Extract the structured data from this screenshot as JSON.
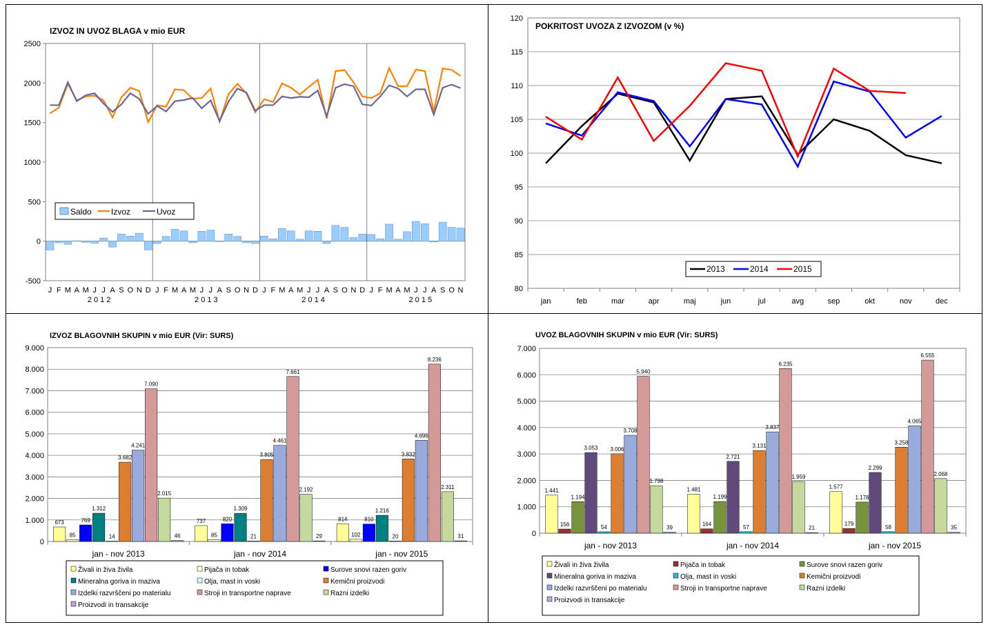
{
  "chart_data": [
    {
      "type": "bar+line",
      "title": "IZVOZ IN UVOZ BLAGA v mio EUR",
      "ylim": [
        -500,
        2500
      ],
      "yticks": [
        2500,
        2000,
        1500,
        1000,
        500,
        0,
        -500
      ],
      "month_labels": [
        "J",
        "F",
        "M",
        "A",
        "M",
        "J",
        "J",
        "A",
        "S",
        "O",
        "N",
        "D",
        "J",
        "F",
        "M",
        "A",
        "M",
        "J",
        "J",
        "A",
        "S",
        "O",
        "N",
        "D",
        "J",
        "F",
        "M",
        "A",
        "M",
        "J",
        "J",
        "A",
        "S",
        "O",
        "N",
        "D",
        "J",
        "F",
        "M",
        "A",
        "M",
        "J",
        "J",
        "A",
        "S",
        "O",
        "N"
      ],
      "years": [
        "2 0 1 2",
        "2 0 1 3",
        "2 0 1 4",
        "2 0 1 5"
      ],
      "legend": [
        "Saldo",
        "Izvoz",
        "Uvoz"
      ],
      "legend_position": "lower-left",
      "grid": "vertical year separators",
      "series": [
        {
          "name": "Saldo",
          "type": "bar",
          "color": "#99ccff",
          "values": [
            -110,
            -20,
            -40,
            5,
            -15,
            -25,
            40,
            -75,
            90,
            65,
            100,
            -110,
            -30,
            60,
            150,
            130,
            -20,
            125,
            140,
            -5,
            90,
            60,
            -20,
            -30,
            65,
            30,
            160,
            130,
            25,
            130,
            125,
            -30,
            200,
            175,
            45,
            90,
            85,
            30,
            215,
            25,
            120,
            250,
            220,
            -10,
            240,
            175,
            165
          ]
        },
        {
          "name": "Izvoz",
          "type": "line",
          "color": "#ff7f00",
          "values": [
            1615,
            1690,
            1990,
            1780,
            1830,
            1840,
            1780,
            1565,
            1820,
            1940,
            1900,
            1505,
            1720,
            1700,
            1920,
            1910,
            1800,
            1810,
            1930,
            1510,
            1860,
            1990,
            1870,
            1630,
            1795,
            1760,
            1995,
            1940,
            1855,
            1950,
            2040,
            1550,
            2150,
            2165,
            2010,
            1830,
            1810,
            1870,
            2190,
            1960,
            1960,
            2170,
            2150,
            1640,
            2185,
            2165,
            2090
          ]
        },
        {
          "name": "Uvoz",
          "type": "line",
          "color": "#666699",
          "values": [
            1720,
            1720,
            2010,
            1770,
            1845,
            1870,
            1740,
            1635,
            1730,
            1870,
            1800,
            1610,
            1710,
            1640,
            1770,
            1785,
            1810,
            1680,
            1780,
            1520,
            1765,
            1930,
            1880,
            1650,
            1720,
            1720,
            1830,
            1810,
            1825,
            1820,
            1905,
            1580,
            1940,
            1985,
            1960,
            1730,
            1715,
            1830,
            1970,
            1930,
            1830,
            1920,
            1920,
            1600,
            1940,
            1980,
            1935
          ]
        }
      ]
    },
    {
      "type": "line",
      "title": "POKRITOST UVOZA Z IZVOZOM (v %)",
      "categories": [
        "jan",
        "feb",
        "mar",
        "apr",
        "maj",
        "jun",
        "jul",
        "avg",
        "sep",
        "okt",
        "nov",
        "dec"
      ],
      "ylim": [
        80,
        120
      ],
      "yticks": [
        120,
        115,
        110,
        105,
        100,
        95,
        90,
        85,
        80
      ],
      "legend_position": "bottom-center",
      "series": [
        {
          "name": "2013",
          "color": "#000000",
          "values": [
            98.5,
            104.0,
            108.8,
            107.5,
            98.9,
            108.0,
            108.4,
            99.8,
            105.0,
            103.3,
            99.7,
            98.5
          ]
        },
        {
          "name": "2014",
          "color": "#0000ff",
          "values": [
            104.4,
            102.6,
            109.0,
            107.7,
            101.0,
            108.0,
            107.2,
            98.0,
            110.6,
            109.1,
            102.3,
            105.5
          ]
        },
        {
          "name": "2015",
          "color": "#ff0000",
          "values": [
            105.4,
            102.0,
            111.2,
            101.8,
            107.0,
            113.3,
            112.2,
            99.5,
            112.5,
            109.2,
            108.9,
            null
          ]
        }
      ]
    },
    {
      "type": "bar",
      "title": "IZVOZ BLAGOVNIH SKUPIN v mio EUR (Vir: SURS)",
      "categories": [
        "jan - nov 2013",
        "jan - nov 2014",
        "jan - nov 2015"
      ],
      "ylim": [
        0,
        9000
      ],
      "yticks": [
        "9.000",
        "8.000",
        "7.000",
        "6.000",
        "5.000",
        "4.000",
        "3.000",
        "2.000",
        "1.000",
        "0"
      ],
      "series": [
        {
          "name": "Živali in živa živila",
          "color": "#ffff99",
          "values": [
            673,
            737,
            814
          ],
          "labels": [
            "673",
            "737",
            "814"
          ]
        },
        {
          "name": "Pijača in tobak",
          "color": "#ffffcc",
          "values": [
            85,
            85,
            102
          ],
          "labels": [
            "85",
            "85",
            "102"
          ]
        },
        {
          "name": "Surove snovi razen goriv",
          "color": "#0000ff",
          "values": [
            769,
            820,
            810
          ],
          "labels": [
            "769",
            "820",
            "810"
          ]
        },
        {
          "name": "Mineralna goriva in maziva",
          "color": "#008080",
          "values": [
            1312,
            1309,
            1216
          ],
          "labels": [
            "1.312",
            "1.309",
            "1.216"
          ]
        },
        {
          "name": "Olja, mast in voski",
          "color": "#ccffff",
          "values": [
            14,
            21,
            20
          ],
          "labels": [
            "14",
            "21",
            "20"
          ]
        },
        {
          "name": "Kemični proizvodi",
          "color": "#dd7f33",
          "values": [
            3682,
            3805,
            3832
          ],
          "labels": [
            "3.682",
            "3.805",
            "3.832"
          ]
        },
        {
          "name": "Izdelki razvrščeni po materialu",
          "color": "#99aadd",
          "values": [
            4241,
            4461,
            4696
          ],
          "labels": [
            "4.241",
            "4.461",
            "4.696"
          ]
        },
        {
          "name": "Stroji in transportne naprave",
          "color": "#d49a9a",
          "values": [
            7090,
            7661,
            8236
          ],
          "labels": [
            "7.090",
            "7.661",
            "8.236"
          ]
        },
        {
          "name": "Razni izdelki",
          "color": "#c4d99b",
          "values": [
            2015,
            2192,
            2311
          ],
          "labels": [
            "2.015",
            "2.192",
            "2.311"
          ]
        },
        {
          "name": "Proizvodi in transakcije",
          "color": "#b9a6d6",
          "values": [
            46,
            29,
            31
          ],
          "labels": [
            "46",
            "29",
            "31"
          ]
        }
      ]
    },
    {
      "type": "bar",
      "title": "UVOZ BLAGOVNIH SKUPIN v mio EUR (Vir: SURS)",
      "categories": [
        "jan - nov 2013",
        "jan - nov 2014",
        "jan - nov 2015"
      ],
      "ylim": [
        0,
        7000
      ],
      "yticks": [
        "7.000",
        "6.000",
        "5.000",
        "4.000",
        "3.000",
        "2.000",
        "1.000",
        "0"
      ],
      "series": [
        {
          "name": "Živali in živa živila",
          "color": "#ffff99",
          "values": [
            1441,
            1481,
            1577
          ],
          "labels": [
            "1.441",
            "1.481",
            "1.577"
          ]
        },
        {
          "name": "Pijača in tobak",
          "color": "#993333",
          "values": [
            156,
            164,
            179
          ],
          "labels": [
            "156",
            "164",
            "179"
          ]
        },
        {
          "name": "Surove snovi razen goriv",
          "color": "#77933c",
          "values": [
            1194,
            1199,
            1178
          ],
          "labels": [
            "1.194",
            "1.199",
            "1.178"
          ]
        },
        {
          "name": "Mineralna goriva in maziva",
          "color": "#604a7b",
          "values": [
            3053,
            2721,
            2299
          ],
          "labels": [
            "3.053",
            "2.721",
            "2.299"
          ]
        },
        {
          "name": "Olja, mast in voski",
          "color": "#31b6cc",
          "values": [
            54,
            57,
            58
          ],
          "labels": [
            "54",
            "57",
            "58"
          ]
        },
        {
          "name": "Kemični proizvodi",
          "color": "#dd7f33",
          "values": [
            3006,
            3131,
            3258
          ],
          "labels": [
            "3.006",
            "3.131",
            "3.258"
          ]
        },
        {
          "name": "Izdelki razvrščeni po materialu",
          "color": "#99aadd",
          "values": [
            3708,
            3837,
            4065
          ],
          "labels": [
            "3.708",
            "3.837",
            "4.065"
          ]
        },
        {
          "name": "Stroji in transportne naprave",
          "color": "#d49a9a",
          "values": [
            5940,
            6235,
            6555
          ],
          "labels": [
            "5.940",
            "6.235",
            "6.555"
          ]
        },
        {
          "name": "Razni izdelki",
          "color": "#c4d99b",
          "values": [
            1798,
            1959,
            2068
          ],
          "labels": [
            "1.798",
            "1.959",
            "2.068"
          ]
        },
        {
          "name": "Proizvodi in transakcije",
          "color": "#b9a6d6",
          "values": [
            39,
            21,
            35
          ],
          "labels": [
            "39",
            "21",
            "35"
          ]
        }
      ]
    }
  ]
}
